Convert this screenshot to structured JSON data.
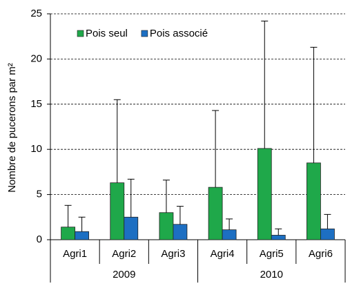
{
  "chart_data": {
    "type": "bar",
    "ylabel": "Nombre de pucerons par m²",
    "groups": [
      {
        "label": "2009",
        "categories": [
          "Agri1",
          "Agri2",
          "Agri3"
        ]
      },
      {
        "label": "2010",
        "categories": [
          "Agri4",
          "Agri5",
          "Agri6"
        ]
      }
    ],
    "series": [
      {
        "name": "Pois seul",
        "color": "#1fa84a",
        "values": [
          1.4,
          6.3,
          3.0,
          5.8,
          10.1,
          8.5
        ],
        "errors": [
          2.4,
          9.2,
          3.6,
          8.5,
          14.1,
          12.8
        ]
      },
      {
        "name": "Pois associé",
        "color": "#1d6fc2",
        "values": [
          0.9,
          2.5,
          1.7,
          1.1,
          0.5,
          1.2
        ],
        "errors": [
          1.6,
          4.2,
          2.0,
          1.2,
          0.7,
          1.6
        ]
      }
    ],
    "ylim": [
      0,
      25
    ],
    "yticks": [
      0,
      5,
      10,
      15,
      20,
      25
    ],
    "grid": true,
    "legend": "upper-left"
  }
}
